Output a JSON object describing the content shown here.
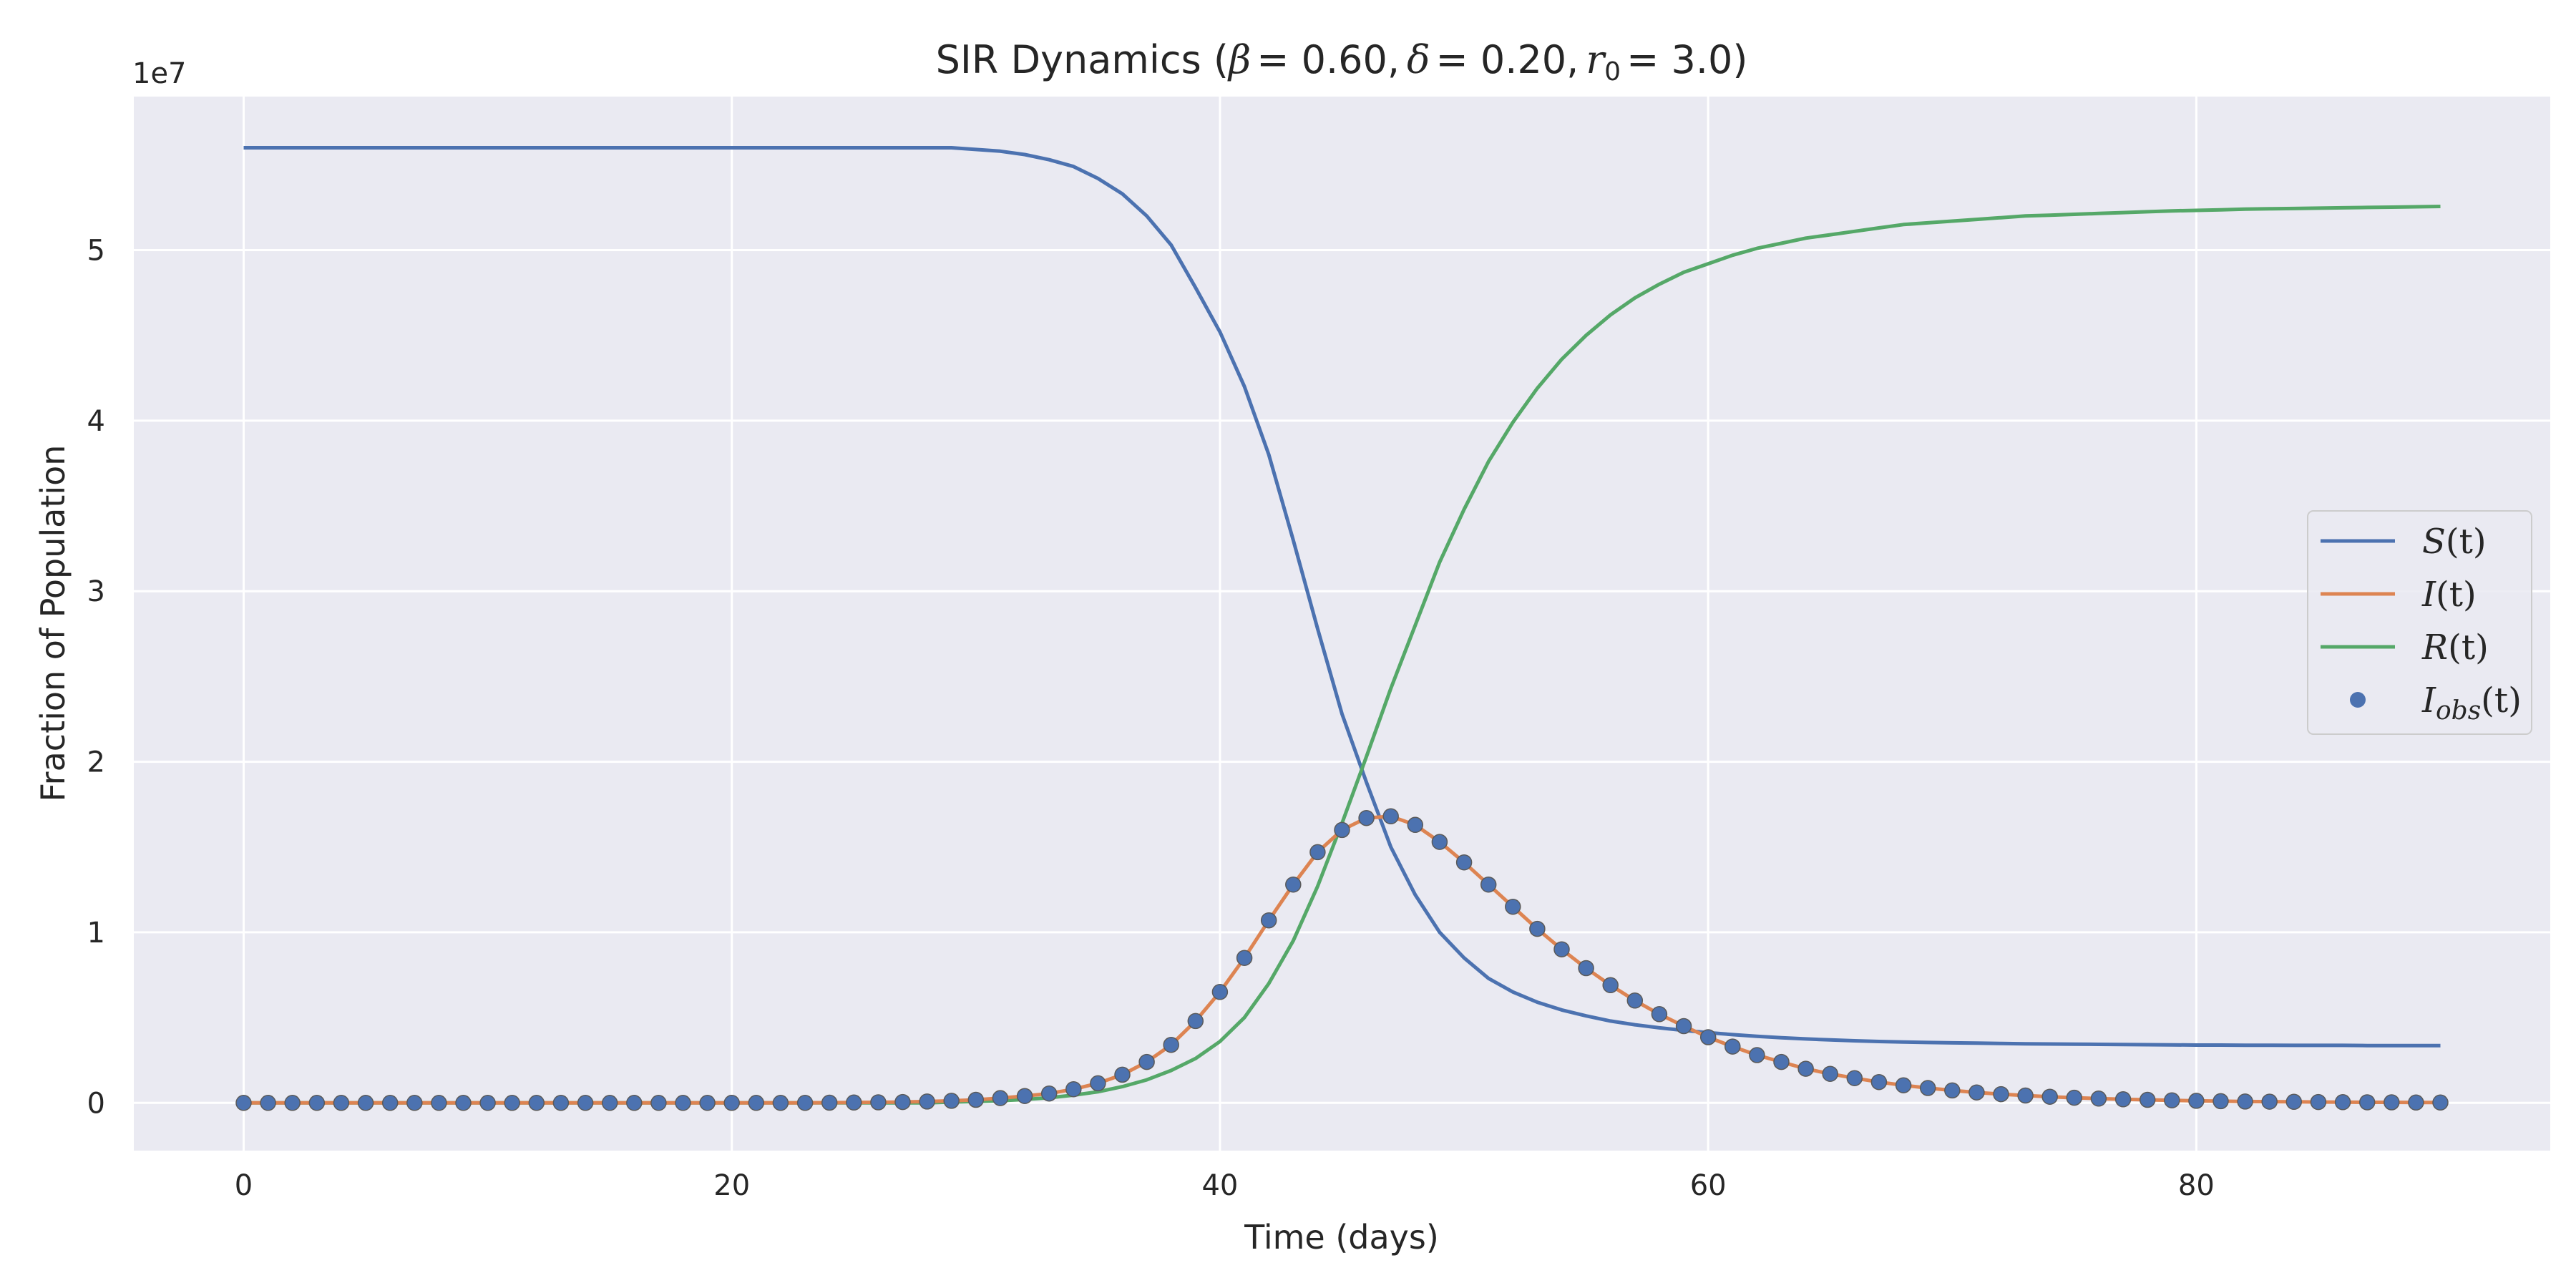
{
  "chart_data": {
    "type": "line",
    "title": {
      "prefix": "SIR Dynamics (",
      "beta_symbol": "β",
      "beta_value": "= 0.60,",
      "delta_symbol": "δ",
      "delta_value": "= 0.20,",
      "r_symbol": "r",
      "r_subscript": "0",
      "r_value": "= 3.0",
      "suffix": ")"
    },
    "xlabel": "Time (days)",
    "ylabel": "Fraction of Population",
    "y_offset_label": "1e7",
    "xlim": [
      -4.5,
      94.5
    ],
    "ylim": [
      -0.28,
      5.9
    ],
    "xticks": [
      0,
      20,
      40,
      60,
      80
    ],
    "xtick_labels": [
      "0",
      "20",
      "40",
      "60",
      "80"
    ],
    "yticks": [
      0,
      1,
      2,
      3,
      4,
      5
    ],
    "ytick_labels": [
      "0",
      "1",
      "2",
      "3",
      "4",
      "5"
    ],
    "grid": true,
    "legend_position": "center-right",
    "background": "#eaeaf2",
    "colors": {
      "S": "#4c72b0",
      "I": "#dd8452",
      "R": "#55a868",
      "I_obs": "#4c72b0"
    },
    "legend": [
      {
        "key": "S",
        "base": "S",
        "sub": "",
        "arg": "(t)",
        "marker": "line"
      },
      {
        "key": "I",
        "base": "I",
        "sub": "",
        "arg": "(t)",
        "marker": "line"
      },
      {
        "key": "R",
        "base": "R",
        "sub": "",
        "arg": "(t)",
        "marker": "line"
      },
      {
        "key": "I_obs",
        "base": "I",
        "sub": "obs",
        "arg": "(t)",
        "marker": "dot"
      }
    ],
    "x": [
      0,
      1,
      2,
      3,
      4,
      5,
      6,
      7,
      8,
      9,
      10,
      11,
      12,
      13,
      14,
      15,
      16,
      17,
      18,
      19,
      20,
      21,
      22,
      23,
      24,
      25,
      26,
      27,
      28,
      29,
      30,
      31,
      32,
      33,
      34,
      35,
      36,
      37,
      38,
      39,
      40,
      41,
      42,
      43,
      44,
      45,
      46,
      47,
      48,
      49,
      50,
      51,
      52,
      53,
      54,
      55,
      56,
      57,
      58,
      59,
      60,
      61,
      62,
      63,
      64,
      65,
      66,
      67,
      68,
      69,
      70,
      71,
      72,
      73,
      74,
      75,
      76,
      77,
      78,
      79,
      80,
      81,
      82,
      83,
      84,
      85,
      86,
      87,
      88,
      89,
      90
    ],
    "series": [
      {
        "key": "S",
        "values": [
          5.6,
          5.6,
          5.6,
          5.6,
          5.6,
          5.6,
          5.6,
          5.6,
          5.6,
          5.6,
          5.6,
          5.6,
          5.6,
          5.6,
          5.6,
          5.6,
          5.6,
          5.6,
          5.6,
          5.6,
          5.6,
          5.6,
          5.6,
          5.6,
          5.6,
          5.6,
          5.6,
          5.6,
          5.6,
          5.6,
          5.59,
          5.58,
          5.56,
          5.53,
          5.49,
          5.42,
          5.33,
          5.2,
          5.03,
          4.78,
          4.52,
          4.2,
          3.8,
          3.3,
          2.78,
          2.28,
          1.88,
          1.5,
          1.22,
          1.0,
          0.85,
          0.73,
          0.65,
          0.59,
          0.545,
          0.51,
          0.48,
          0.458,
          0.44,
          0.425,
          0.412,
          0.4,
          0.39,
          0.382,
          0.375,
          0.369,
          0.364,
          0.36,
          0.357,
          0.354,
          0.352,
          0.35,
          0.348,
          0.346,
          0.345,
          0.344,
          0.343,
          0.342,
          0.341,
          0.34,
          0.339,
          0.339,
          0.338,
          0.338,
          0.337,
          0.337,
          0.337,
          0.336,
          0.336,
          0.336,
          0.336
        ]
      },
      {
        "key": "I",
        "values": [
          0,
          0,
          0,
          0,
          0,
          0,
          0,
          0,
          0,
          0,
          0,
          0,
          0,
          0,
          0,
          0,
          0,
          0,
          0,
          0,
          0,
          0,
          0,
          0,
          0.001,
          0.002,
          0.003,
          0.005,
          0.008,
          0.012,
          0.018,
          0.028,
          0.04,
          0.055,
          0.08,
          0.115,
          0.165,
          0.24,
          0.34,
          0.48,
          0.65,
          0.85,
          1.07,
          1.28,
          1.47,
          1.6,
          1.67,
          1.68,
          1.63,
          1.53,
          1.41,
          1.28,
          1.15,
          1.02,
          0.9,
          0.79,
          0.69,
          0.6,
          0.52,
          0.45,
          0.385,
          0.33,
          0.28,
          0.24,
          0.2,
          0.17,
          0.145,
          0.122,
          0.103,
          0.087,
          0.073,
          0.061,
          0.051,
          0.043,
          0.036,
          0.03,
          0.025,
          0.021,
          0.018,
          0.015,
          0.012,
          0.01,
          0.008,
          0.007,
          0.006,
          0.005,
          0.004,
          0.003,
          0.003,
          0.002,
          0.002
        ]
      },
      {
        "key": "R",
        "values": [
          0,
          0,
          0,
          0,
          0,
          0,
          0,
          0,
          0,
          0,
          0,
          0,
          0,
          0,
          0,
          0,
          0,
          0,
          0,
          0,
          0,
          0,
          0,
          0,
          0,
          0,
          0,
          0,
          0,
          0.005,
          0.008,
          0.013,
          0.02,
          0.03,
          0.045,
          0.065,
          0.095,
          0.135,
          0.19,
          0.26,
          0.36,
          0.5,
          0.7,
          0.95,
          1.27,
          1.64,
          2.03,
          2.43,
          2.8,
          3.17,
          3.48,
          3.76,
          3.99,
          4.19,
          4.36,
          4.5,
          4.62,
          4.72,
          4.8,
          4.87,
          4.92,
          4.97,
          5.01,
          5.04,
          5.07,
          5.09,
          5.11,
          5.13,
          5.15,
          5.16,
          5.17,
          5.18,
          5.19,
          5.2,
          5.205,
          5.21,
          5.215,
          5.22,
          5.225,
          5.23,
          5.233,
          5.236,
          5.24,
          5.242,
          5.244,
          5.246,
          5.248,
          5.25,
          5.252,
          5.254,
          5.256
        ]
      },
      {
        "key": "I_obs",
        "type": "scatter",
        "values": [
          0,
          0,
          0,
          0,
          0,
          0,
          0,
          0,
          0,
          0,
          0,
          0,
          0,
          0,
          0,
          0,
          0,
          0,
          0,
          0,
          0,
          0,
          0,
          0,
          0.001,
          0.002,
          0.003,
          0.005,
          0.008,
          0.012,
          0.018,
          0.028,
          0.04,
          0.055,
          0.08,
          0.115,
          0.165,
          0.24,
          0.34,
          0.48,
          0.65,
          0.85,
          1.07,
          1.28,
          1.47,
          1.6,
          1.67,
          1.68,
          1.63,
          1.53,
          1.41,
          1.28,
          1.15,
          1.02,
          0.9,
          0.79,
          0.69,
          0.6,
          0.52,
          0.45,
          0.385,
          0.33,
          0.28,
          0.24,
          0.2,
          0.17,
          0.145,
          0.122,
          0.103,
          0.087,
          0.073,
          0.061,
          0.051,
          0.043,
          0.036,
          0.03,
          0.025,
          0.021,
          0.018,
          0.015,
          0.012,
          0.01,
          0.008,
          0.007,
          0.006,
          0.005,
          0.004,
          0.003,
          0.003,
          0.002,
          0.002
        ]
      }
    ]
  }
}
